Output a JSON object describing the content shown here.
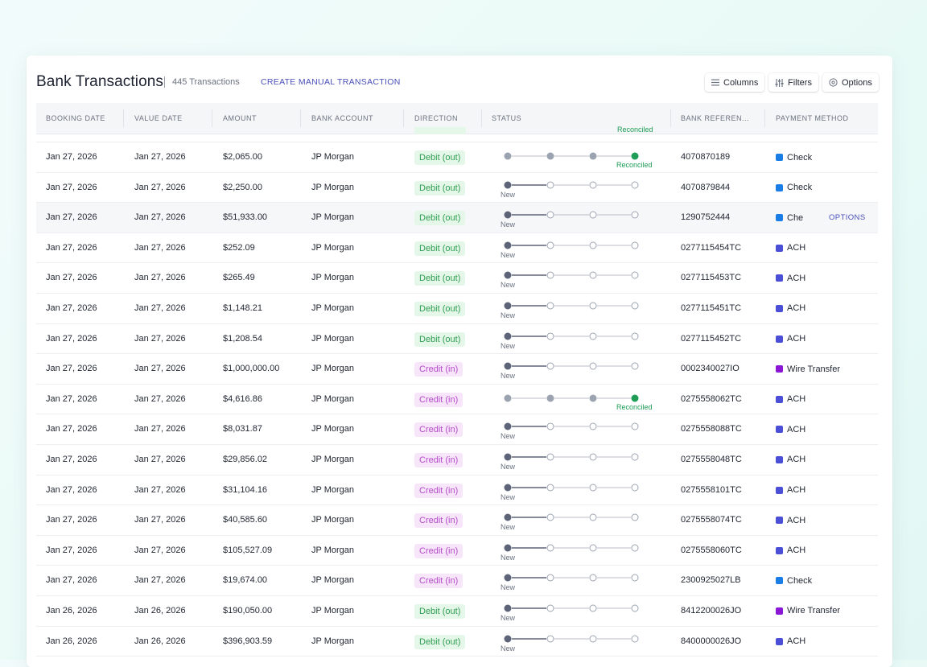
{
  "header": {
    "title": "Bank Transactions",
    "count": "445 Transactions",
    "create_label": "CREATE MANUAL TRANSACTION",
    "buttons": [
      {
        "label": "Columns",
        "icon": "list-icon"
      },
      {
        "label": "Filters",
        "icon": "sliders-icon"
      },
      {
        "label": "Options",
        "icon": "settings-circle-icon"
      }
    ]
  },
  "columns": [
    "BOOKING DATE",
    "VALUE DATE",
    "AMOUNT",
    "BANK ACCOUNT",
    "DIRECTION",
    "STATUS",
    "BANK REFEREN...",
    "PAYMENT METHOD"
  ],
  "peek_status": "Reconciled",
  "status_labels": {
    "new": "New",
    "reconciled": "Reconciled"
  },
  "row_action_label": "OPTIONS",
  "colors": {
    "accent": "#4a4fb8",
    "debit_bg": "#e5f7e9",
    "debit_fg": "#2f9e52",
    "credit_bg": "#f7e5fa",
    "credit_fg": "#b54cc9",
    "reconciled": "#1f9d57",
    "method_check": "#1a7de6",
    "method_ach": "#4b4fd6",
    "method_wire": "#8b16d6"
  },
  "rows": [
    {
      "booking": "Jan 27, 2026",
      "value": "Jan 27, 2026",
      "amount": "$2,065.00",
      "account": "JP Morgan",
      "direction": "Debit (out)",
      "dir": "debit",
      "status": "reconciled",
      "reference": "4070870189",
      "method": "Check",
      "mcolor": "#1a7de6"
    },
    {
      "booking": "Jan 27, 2026",
      "value": "Jan 27, 2026",
      "amount": "$2,250.00",
      "account": "JP Morgan",
      "direction": "Debit (out)",
      "dir": "debit",
      "status": "new",
      "reference": "4070879844",
      "method": "Check",
      "mcolor": "#1a7de6"
    },
    {
      "booking": "Jan 27, 2026",
      "value": "Jan 27, 2026",
      "amount": "$51,933.00",
      "account": "JP Morgan",
      "direction": "Debit (out)",
      "dir": "debit",
      "status": "new",
      "reference": "1290752444",
      "method": "Che",
      "mcolor": "#1a7de6",
      "hover": true
    },
    {
      "booking": "Jan 27, 2026",
      "value": "Jan 27, 2026",
      "amount": "$252.09",
      "account": "JP Morgan",
      "direction": "Debit (out)",
      "dir": "debit",
      "status": "new",
      "reference": "0277115454TC",
      "method": "ACH",
      "mcolor": "#4b4fd6"
    },
    {
      "booking": "Jan 27, 2026",
      "value": "Jan 27, 2026",
      "amount": "$265.49",
      "account": "JP Morgan",
      "direction": "Debit (out)",
      "dir": "debit",
      "status": "new",
      "reference": "0277115453TC",
      "method": "ACH",
      "mcolor": "#4b4fd6"
    },
    {
      "booking": "Jan 27, 2026",
      "value": "Jan 27, 2026",
      "amount": "$1,148.21",
      "account": "JP Morgan",
      "direction": "Debit (out)",
      "dir": "debit",
      "status": "new",
      "reference": "0277115451TC",
      "method": "ACH",
      "mcolor": "#4b4fd6"
    },
    {
      "booking": "Jan 27, 2026",
      "value": "Jan 27, 2026",
      "amount": "$1,208.54",
      "account": "JP Morgan",
      "direction": "Debit (out)",
      "dir": "debit",
      "status": "new",
      "reference": "0277115452TC",
      "method": "ACH",
      "mcolor": "#4b4fd6"
    },
    {
      "booking": "Jan 27, 2026",
      "value": "Jan 27, 2026",
      "amount": "$1,000,000.00",
      "account": "JP Morgan",
      "direction": "Credit (in)",
      "dir": "credit",
      "status": "new",
      "reference": "0002340027IO",
      "method": "Wire Transfer",
      "mcolor": "#8b16d6"
    },
    {
      "booking": "Jan 27, 2026",
      "value": "Jan 27, 2026",
      "amount": "$4,616.86",
      "account": "JP Morgan",
      "direction": "Credit (in)",
      "dir": "credit",
      "status": "reconciled",
      "reference": "0275558062TC",
      "method": "ACH",
      "mcolor": "#4b4fd6"
    },
    {
      "booking": "Jan 27, 2026",
      "value": "Jan 27, 2026",
      "amount": "$8,031.87",
      "account": "JP Morgan",
      "direction": "Credit (in)",
      "dir": "credit",
      "status": "new",
      "reference": "0275558088TC",
      "method": "ACH",
      "mcolor": "#4b4fd6"
    },
    {
      "booking": "Jan 27, 2026",
      "value": "Jan 27, 2026",
      "amount": "$29,856.02",
      "account": "JP Morgan",
      "direction": "Credit (in)",
      "dir": "credit",
      "status": "new",
      "reference": "0275558048TC",
      "method": "ACH",
      "mcolor": "#4b4fd6"
    },
    {
      "booking": "Jan 27, 2026",
      "value": "Jan 27, 2026",
      "amount": "$31,104.16",
      "account": "JP Morgan",
      "direction": "Credit (in)",
      "dir": "credit",
      "status": "new",
      "reference": "0275558101TC",
      "method": "ACH",
      "mcolor": "#4b4fd6"
    },
    {
      "booking": "Jan 27, 2026",
      "value": "Jan 27, 2026",
      "amount": "$40,585.60",
      "account": "JP Morgan",
      "direction": "Credit (in)",
      "dir": "credit",
      "status": "new",
      "reference": "0275558074TC",
      "method": "ACH",
      "mcolor": "#4b4fd6"
    },
    {
      "booking": "Jan 27, 2026",
      "value": "Jan 27, 2026",
      "amount": "$105,527.09",
      "account": "JP Morgan",
      "direction": "Credit (in)",
      "dir": "credit",
      "status": "new",
      "reference": "0275558060TC",
      "method": "ACH",
      "mcolor": "#4b4fd6"
    },
    {
      "booking": "Jan 27, 2026",
      "value": "Jan 27, 2026",
      "amount": "$19,674.00",
      "account": "JP Morgan",
      "direction": "Credit (in)",
      "dir": "credit",
      "status": "new",
      "reference": "2300925027LB",
      "method": "Check",
      "mcolor": "#1a7de6"
    },
    {
      "booking": "Jan 26, 2026",
      "value": "Jan 26, 2026",
      "amount": "$190,050.00",
      "account": "JP Morgan",
      "direction": "Debit (out)",
      "dir": "debit",
      "status": "new",
      "reference": "8412200026JO",
      "method": "Wire Transfer",
      "mcolor": "#8b16d6"
    },
    {
      "booking": "Jan 26, 2026",
      "value": "Jan 26, 2026",
      "amount": "$396,903.59",
      "account": "JP Morgan",
      "direction": "Debit (out)",
      "dir": "debit",
      "status": "new",
      "reference": "8400000026JO",
      "method": "ACH",
      "mcolor": "#4b4fd6"
    }
  ]
}
